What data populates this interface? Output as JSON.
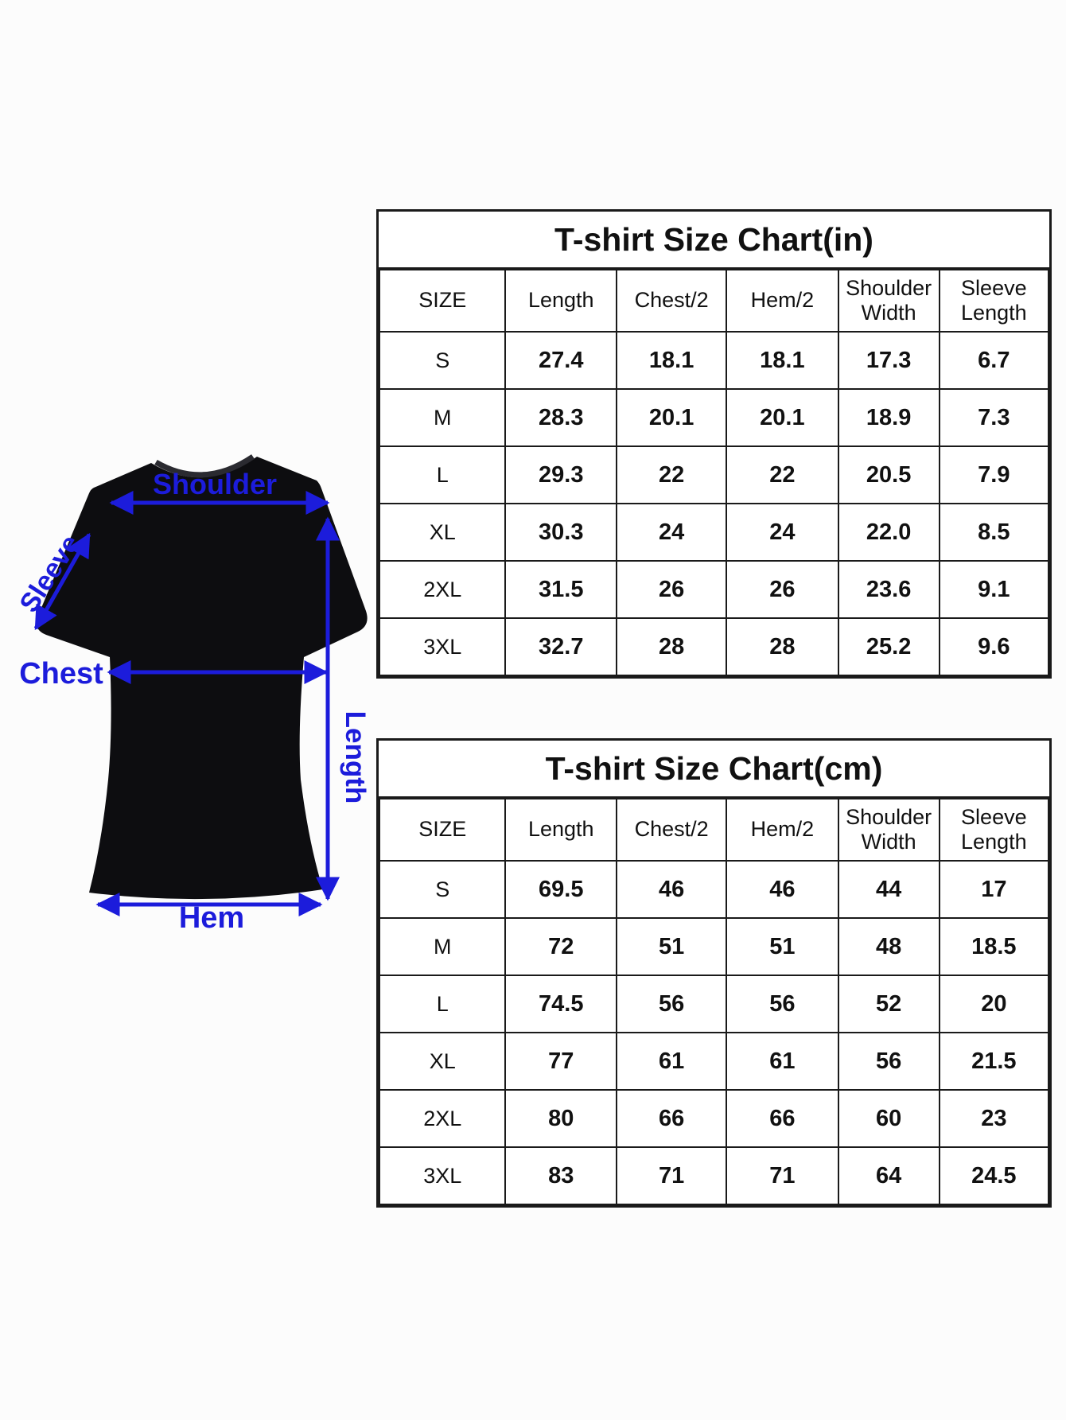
{
  "diagram": {
    "labels": {
      "shoulder": "Shoulder",
      "sleeve": "Sleeve",
      "chest": "Chest",
      "length": "Length",
      "hem": "Hem"
    },
    "annotation_color": "#1c1cdb",
    "shirt_color": "#0d0d10"
  },
  "tables": [
    {
      "title": "T-shirt Size Chart(in)",
      "columns": [
        "SIZE",
        "Length",
        "Chest/2",
        "Hem/2",
        "Shoulder Width",
        "Sleeve Length"
      ],
      "rows": [
        [
          "S",
          "27.4",
          "18.1",
          "18.1",
          "17.3",
          "6.7"
        ],
        [
          "M",
          "28.3",
          "20.1",
          "20.1",
          "18.9",
          "7.3"
        ],
        [
          "L",
          "29.3",
          "22",
          "22",
          "20.5",
          "7.9"
        ],
        [
          "XL",
          "30.3",
          "24",
          "24",
          "22.0",
          "8.5"
        ],
        [
          "2XL",
          "31.5",
          "26",
          "26",
          "23.6",
          "9.1"
        ],
        [
          "3XL",
          "32.7",
          "28",
          "28",
          "25.2",
          "9.6"
        ]
      ]
    },
    {
      "title": "T-shirt Size Chart(cm)",
      "columns": [
        "SIZE",
        "Length",
        "Chest/2",
        "Hem/2",
        "Shoulder Width",
        "Sleeve Length"
      ],
      "rows": [
        [
          "S",
          "69.5",
          "46",
          "46",
          "44",
          "17"
        ],
        [
          "M",
          "72",
          "51",
          "51",
          "48",
          "18.5"
        ],
        [
          "L",
          "74.5",
          "56",
          "56",
          "52",
          "20"
        ],
        [
          "XL",
          "77",
          "61",
          "61",
          "56",
          "21.5"
        ],
        [
          "2XL",
          "80",
          "66",
          "66",
          "60",
          "23"
        ],
        [
          "3XL",
          "83",
          "71",
          "71",
          "64",
          "24.5"
        ]
      ]
    }
  ]
}
